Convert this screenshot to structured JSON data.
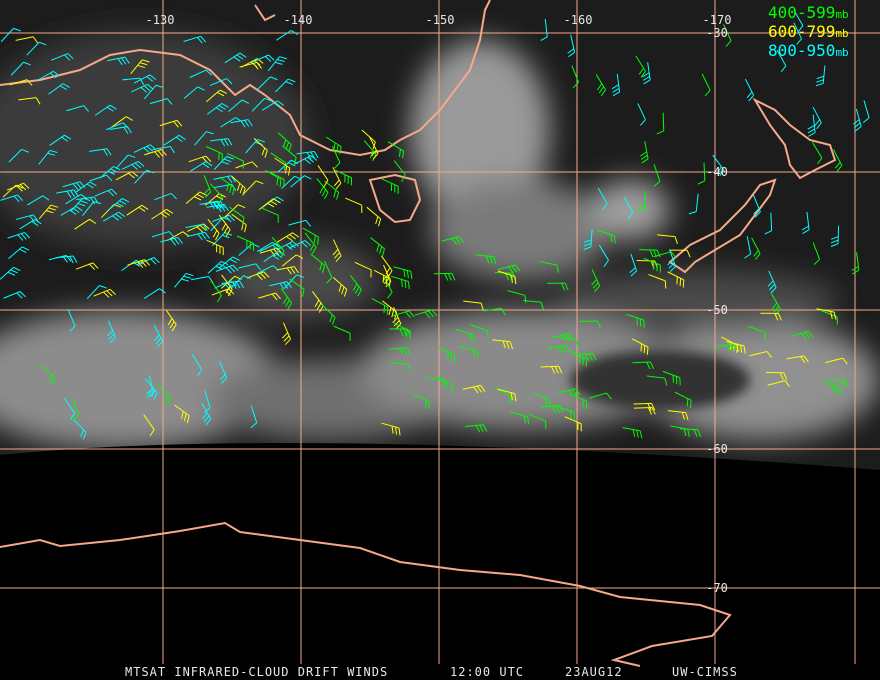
{
  "longitude_labels": [
    "-130",
    "-140",
    "-150",
    "-160",
    "-170"
  ],
  "latitude_labels": [
    "-30",
    "-40",
    "-50",
    "-60",
    "-70"
  ],
  "legend": [
    {
      "range": "400-599",
      "unit": "mb",
      "color": "#00ff00"
    },
    {
      "range": "600-799",
      "unit": "mb",
      "color": "#ffff00"
    },
    {
      "range": "800-950",
      "unit": "mb",
      "color": "#00ffff"
    }
  ],
  "footer": {
    "product": "MTSAT INFRARED-CLOUD DRIFT WINDS",
    "time": "12:00 UTC",
    "date": "23AUG12",
    "source": "UW-CIMSS"
  }
}
